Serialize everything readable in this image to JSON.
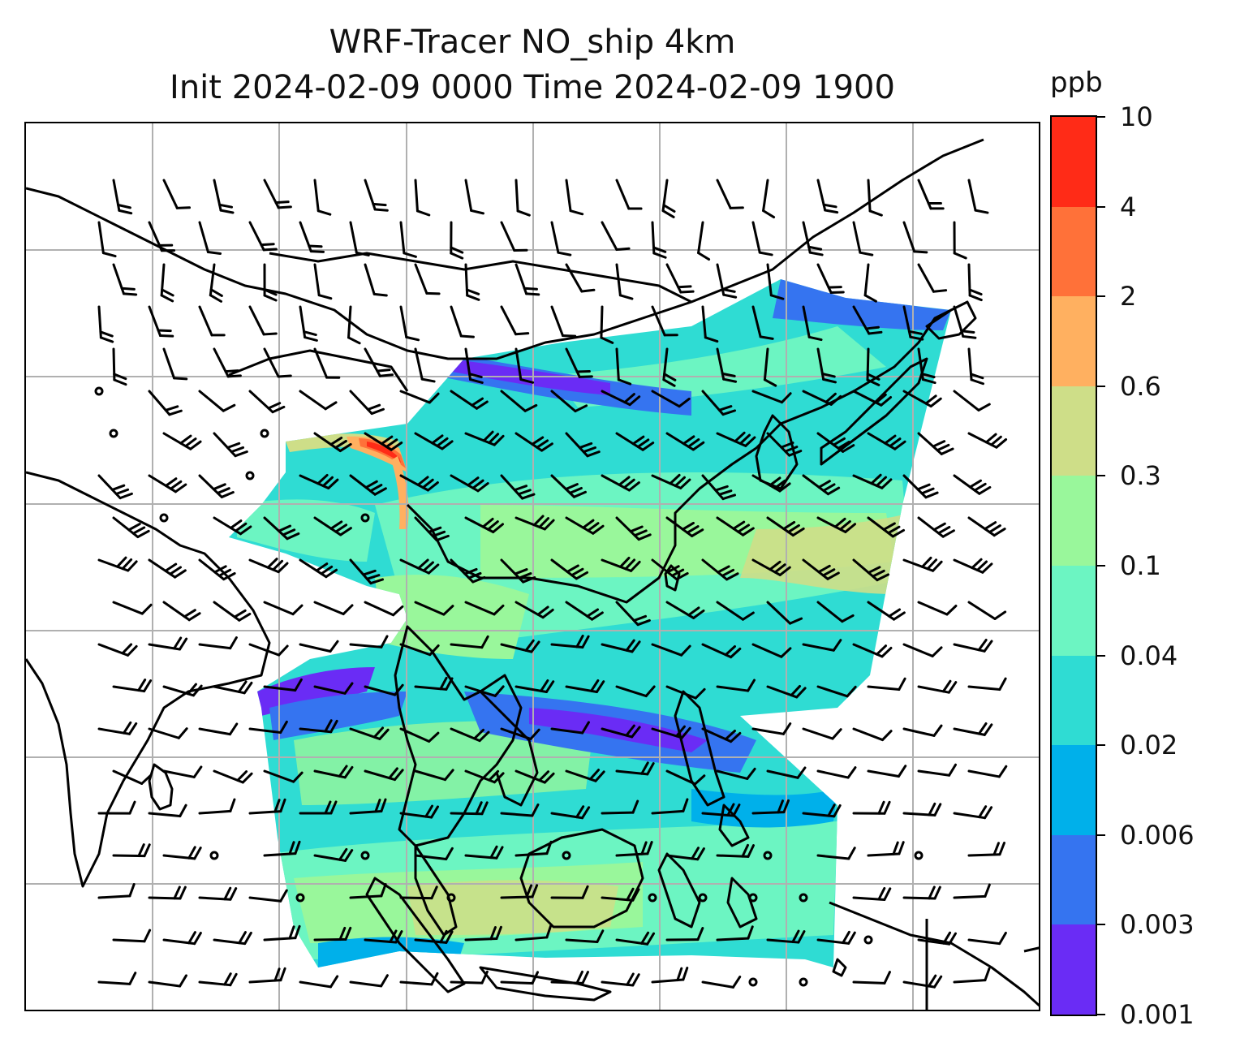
{
  "title": {
    "line1": "WRF-Tracer NO_ship 4km",
    "line2": "Init 2024-02-09 0000 Time 2024-02-09 1900"
  },
  "colorbar": {
    "unit": "ppb",
    "levels": [
      "0.001",
      "0.003",
      "0.006",
      "0.02",
      "0.04",
      "0.1",
      "0.3",
      "0.6",
      "2",
      "4",
      "10"
    ],
    "colors": [
      "#6a2cf5",
      "#3574f0",
      "#00b0ea",
      "#2fdcd3",
      "#6cf5c2",
      "#99f79b",
      "#cede88",
      "#ffb060",
      "#ff7139",
      "#ff2b17"
    ]
  },
  "map": {
    "gridlines": true,
    "coastline_color": "#000000",
    "gridline_color": "#b0b0b0",
    "overlay": "wind barbs",
    "tracer_field": "NO_ship concentration"
  }
}
